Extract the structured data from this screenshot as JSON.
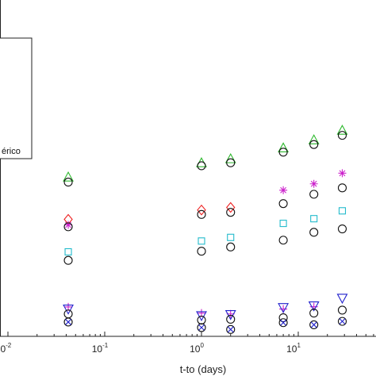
{
  "chart_data": {
    "type": "scatter",
    "xscale": "log",
    "xlim": [
      0.0095,
      70
    ],
    "ylim": [
      0,
      1
    ],
    "grid": false,
    "xlabel": "t-to (days)",
    "ylabel": "",
    "x_ticks": [
      {
        "value": 0.01,
        "base": "10",
        "exp": "-2"
      },
      {
        "value": 0.1,
        "base": "10",
        "exp": "-1"
      },
      {
        "value": 1,
        "base": "10",
        "exp": "0"
      },
      {
        "value": 10,
        "base": "10",
        "exp": "1"
      }
    ],
    "legend": {
      "position": "top-left",
      "visible_entry_text": "érico"
    },
    "series": [
      {
        "marker": "triangle-up",
        "color": "#2db82d",
        "points": [
          [
            0.042,
            0.727
          ],
          [
            1,
            0.794
          ],
          [
            2,
            0.813
          ],
          [
            7,
            0.864
          ],
          [
            14.5,
            0.902
          ],
          [
            28.5,
            0.947
          ]
        ]
      },
      {
        "marker": "circle",
        "color": "#111111",
        "points": [
          [
            0.042,
            0.703
          ],
          [
            1,
            0.78
          ],
          [
            2,
            0.794
          ],
          [
            7,
            0.844
          ],
          [
            14.5,
            0.88
          ],
          [
            28.5,
            0.923
          ]
        ]
      },
      {
        "marker": "diamond",
        "color": "#ee2222",
        "points": [
          [
            0.042,
            0.528
          ],
          [
            1,
            0.572
          ],
          [
            2,
            0.584
          ]
        ]
      },
      {
        "marker": "star",
        "color": "#cc22cc",
        "points": [
          [
            0.042,
            0.502
          ],
          [
            7,
            0.665
          ],
          [
            14.5,
            0.695
          ],
          [
            28.5,
            0.745
          ]
        ]
      },
      {
        "marker": "circle",
        "color": "#111111",
        "points": [
          [
            0.042,
            0.493
          ],
          [
            1,
            0.551
          ],
          [
            2,
            0.561
          ],
          [
            7,
            0.602
          ],
          [
            14.5,
            0.646
          ],
          [
            28.5,
            0.676
          ]
        ]
      },
      {
        "marker": "square",
        "color": "#22bbcc",
        "points": [
          [
            0.042,
            0.375
          ],
          [
            1,
            0.426
          ],
          [
            2,
            0.443
          ],
          [
            7,
            0.509
          ],
          [
            14.5,
            0.531
          ],
          [
            28.5,
            0.568
          ]
        ]
      },
      {
        "marker": "circle",
        "color": "#111111",
        "points": [
          [
            0.042,
            0.335
          ],
          [
            1,
            0.378
          ],
          [
            2,
            0.398
          ],
          [
            7,
            0.43
          ],
          [
            14.5,
            0.467
          ],
          [
            28.5,
            0.483
          ]
        ]
      },
      {
        "marker": "plus",
        "color": "#cc22cc",
        "points": [
          [
            0.042,
            0.116
          ],
          [
            1,
            0.087
          ],
          [
            2,
            0.083
          ],
          [
            7,
            0.106
          ],
          [
            14.5,
            0.117
          ]
        ]
      },
      {
        "marker": "triangle-down",
        "color": "#2222cc",
        "points": [
          [
            0.042,
            0.106
          ],
          [
            1,
            0.075
          ],
          [
            2,
            0.08
          ],
          [
            7,
            0.113
          ],
          [
            14.5,
            0.121
          ],
          [
            28.5,
            0.157
          ]
        ]
      },
      {
        "marker": "circle",
        "color": "#111111",
        "points": [
          [
            0.042,
            0.083
          ],
          [
            1,
            0.054
          ],
          [
            2,
            0.058
          ],
          [
            7,
            0.065
          ],
          [
            14.5,
            0.087
          ],
          [
            28.5,
            0.101
          ]
        ]
      },
      {
        "marker": "circle-x",
        "color": "#2222cc",
        "points": [
          [
            0.042,
            0.045
          ],
          [
            1,
            0.019
          ],
          [
            2,
            0.01
          ],
          [
            7,
            0.042
          ],
          [
            14.5,
            0.032
          ],
          [
            28.5,
            0.048
          ]
        ]
      }
    ]
  }
}
